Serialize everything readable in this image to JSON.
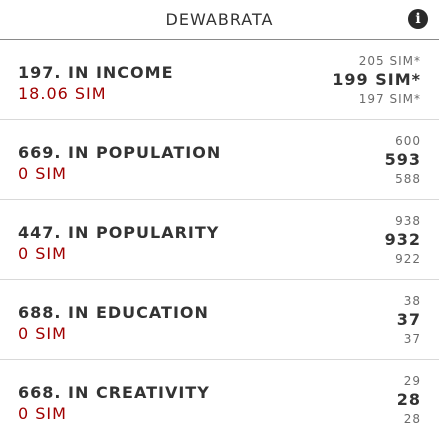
{
  "header": {
    "title": "DEWABRATA",
    "info_icon": "info-icon"
  },
  "rankings": [
    {
      "label": "197. IN INCOME",
      "value": "18.06 SIM",
      "neighbor_above": "205 SIM*",
      "current": "199 SIM*",
      "neighbor_below": "197 SIM*"
    },
    {
      "label": "669. IN POPULATION",
      "value": "0 SIM",
      "neighbor_above": "600",
      "current": "593",
      "neighbor_below": "588"
    },
    {
      "label": "447. IN POPULARITY",
      "value": "0 SIM",
      "neighbor_above": "938",
      "current": "932",
      "neighbor_below": "922"
    },
    {
      "label": "688. IN EDUCATION",
      "value": "0 SIM",
      "neighbor_above": "38",
      "current": "37",
      "neighbor_below": "37"
    },
    {
      "label": "668. IN CREATIVITY",
      "value": "0 SIM",
      "neighbor_above": "29",
      "current": "28",
      "neighbor_below": "28"
    }
  ],
  "colors": {
    "value_red": "#a00000",
    "text": "#333333",
    "muted": "#6b6b6b"
  }
}
